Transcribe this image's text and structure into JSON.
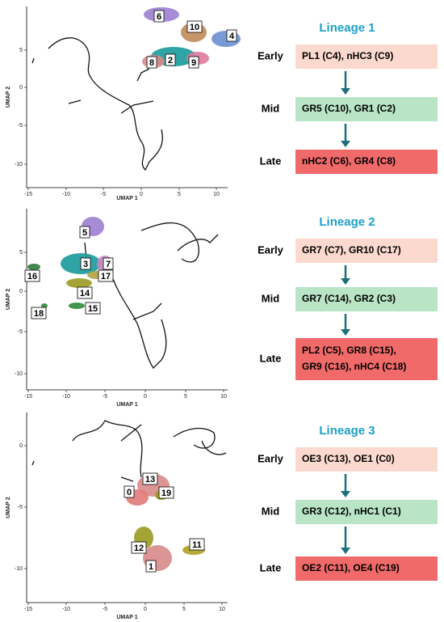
{
  "panels": [
    {
      "x_axis_label": "UMAP 1",
      "y_axis_label": "UMAP 2",
      "xticks": [
        -15,
        -10,
        -5,
        0,
        5,
        10
      ],
      "yticks": [
        5,
        0,
        -5,
        -10
      ],
      "clusters": [
        "6",
        "10",
        "4",
        "8",
        "2",
        "9"
      ],
      "lineage": {
        "title": "Lineage 1",
        "stages": [
          {
            "name": "Early",
            "lines": [
              "PL1 (C4), nHC3 (C9)"
            ]
          },
          {
            "name": "Mid",
            "lines": [
              "GR5 (C10), GR1 (C2)"
            ]
          },
          {
            "name": "Late",
            "lines": [
              "nHC2 (C6), GR4 (C8)"
            ]
          }
        ]
      }
    },
    {
      "x_axis_label": "UMAP 1",
      "y_axis_label": "UMAP 2",
      "xticks": [
        -15,
        -10,
        -5,
        0,
        5,
        10
      ],
      "yticks": [
        5,
        0,
        -5,
        -10
      ],
      "clusters": [
        "5",
        "3",
        "7",
        "16",
        "17",
        "14",
        "15",
        "18"
      ],
      "lineage": {
        "title": "Lineage 2",
        "stages": [
          {
            "name": "Early",
            "lines": [
              "GR7 (C7), GR10 (C17)"
            ]
          },
          {
            "name": "Mid",
            "lines": [
              "GR7 (C14), GR2 (C3)"
            ]
          },
          {
            "name": "Late",
            "lines": [
              "PL2 (C5), GR8 (C15),",
              "GR9 (C16), nHC4 (C18)"
            ]
          }
        ]
      }
    },
    {
      "x_axis_label": "UMAP 1",
      "y_axis_label": "UMAP 2",
      "xticks": [
        -15,
        -10,
        -5,
        0,
        5,
        10
      ],
      "yticks": [
        0,
        -5,
        -10
      ],
      "clusters": [
        "13",
        "0",
        "19",
        "12",
        "11",
        "1"
      ],
      "lineage": {
        "title": "Lineage 3",
        "stages": [
          {
            "name": "Early",
            "lines": [
              "OE3 (C13), OE1 (C0)"
            ]
          },
          {
            "name": "Mid",
            "lines": [
              "GR3 (C12), nHC1 (C1)"
            ]
          },
          {
            "name": "Late",
            "lines": [
              "OE2 (C11), OE4 (C19)"
            ]
          }
        ]
      }
    }
  ]
}
